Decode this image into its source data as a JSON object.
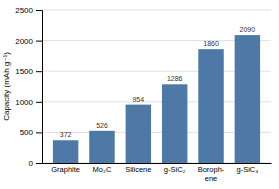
{
  "chart_data": {
    "type": "bar",
    "categories": [
      "Graphite",
      "Mo₂C",
      "Silicene",
      "g-SiC₂",
      "Boroph-\nene",
      "g-SiC₃"
    ],
    "values": [
      372,
      526,
      954,
      1286,
      1860,
      2090
    ],
    "ylabel": "Capacity (mAh g⁻¹)",
    "ylim": [
      0,
      2500
    ],
    "yticks": [
      0,
      500,
      1000,
      1500,
      2000,
      2500
    ],
    "grid": true,
    "data_labels": true
  }
}
